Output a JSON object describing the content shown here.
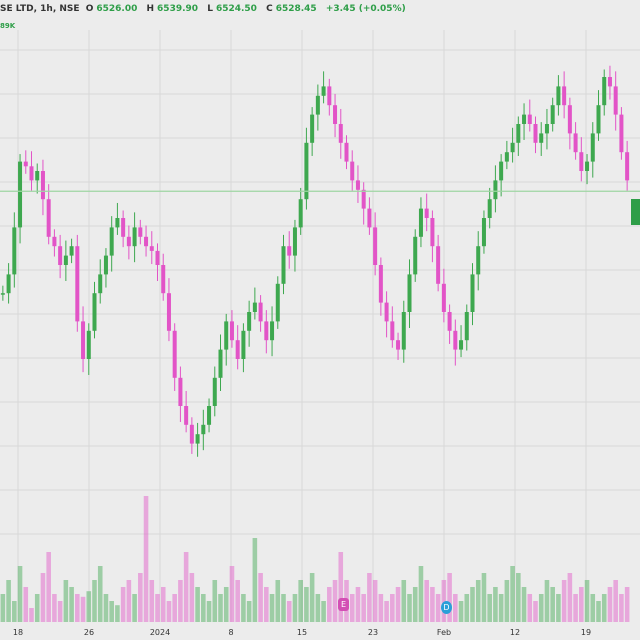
{
  "header": {
    "symbol": "SE LTD, 1h, NSE",
    "open_label": "O",
    "open": "6526.00",
    "high_label": "H",
    "high": "6539.90",
    "low_label": "L",
    "low": "6524.50",
    "close_label": "C",
    "close": "6528.45",
    "change": "+3.45 (+0.05%)",
    "vol_tag": "89K"
  },
  "colors": {
    "up": "#3ea84f",
    "down": "#e254c7",
    "background": "#ececec",
    "grid": "#d8d8d8",
    "price_line": "#9fd6a3",
    "event_earnings": "#d34fb4",
    "event_dividend": "#2aa0d8"
  },
  "events": [
    {
      "icon": "earnings-event-icon",
      "glyph": "E",
      "date_label": "23"
    },
    {
      "icon": "dividend-event-icon",
      "glyph": "D",
      "date_label": "Feb"
    }
  ],
  "chart_data": {
    "type": "candlestick",
    "interval": "1h",
    "x_tick_labels": [
      "18",
      "26",
      "2024",
      "8",
      "15",
      "23",
      "Feb",
      "12",
      "19"
    ],
    "price_line": 6528.45,
    "y_range": [
      6200,
      6700
    ],
    "grid": true,
    "ohlc_close_path": [
      6420,
      6440,
      6490,
      6560,
      6555,
      6540,
      6550,
      6520,
      6480,
      6470,
      6450,
      6460,
      6470,
      6390,
      6350,
      6380,
      6420,
      6440,
      6460,
      6490,
      6500,
      6480,
      6470,
      6490,
      6480,
      6470,
      6465,
      6450,
      6420,
      6380,
      6330,
      6300,
      6280,
      6260,
      6270,
      6280,
      6300,
      6330,
      6360,
      6390,
      6370,
      6350,
      6380,
      6400,
      6410,
      6390,
      6370,
      6390,
      6430,
      6470,
      6460,
      6490,
      6520,
      6580,
      6610,
      6630,
      6640,
      6620,
      6600,
      6580,
      6560,
      6540,
      6530,
      6510,
      6490,
      6450,
      6410,
      6390,
      6370,
      6360,
      6400,
      6440,
      6480,
      6510,
      6500,
      6470,
      6430,
      6400,
      6380,
      6360,
      6370,
      6400,
      6440,
      6470,
      6500,
      6520,
      6540,
      6560,
      6570,
      6580,
      6600,
      6610,
      6600,
      6580,
      6590,
      6600,
      6620,
      6640,
      6620,
      6590,
      6570,
      6550,
      6560,
      6590,
      6620,
      6650,
      6640,
      6610,
      6570,
      6540
    ],
    "volume_relative": [
      0.2,
      0.3,
      0.15,
      0.4,
      0.25,
      0.1,
      0.2,
      0.35,
      0.5,
      0.2,
      0.15,
      0.3,
      0.25,
      0.2,
      0.18,
      0.22,
      0.3,
      0.4,
      0.2,
      0.15,
      0.12,
      0.25,
      0.3,
      0.2,
      0.35,
      0.9,
      0.3,
      0.2,
      0.25,
      0.15,
      0.2,
      0.3,
      0.5,
      0.35,
      0.25,
      0.2,
      0.15,
      0.3,
      0.2,
      0.25,
      0.4,
      0.3,
      0.2,
      0.15,
      0.6,
      0.35,
      0.25,
      0.2,
      0.3,
      0.2,
      0.15,
      0.2,
      0.3,
      0.25,
      0.35,
      0.2,
      0.15,
      0.25,
      0.3,
      0.5,
      0.3,
      0.2,
      0.25,
      0.2,
      0.35,
      0.3,
      0.2,
      0.15,
      0.2,
      0.25,
      0.3,
      0.2,
      0.25,
      0.4,
      0.3,
      0.25,
      0.2,
      0.3,
      0.35,
      0.2,
      0.15,
      0.2,
      0.25,
      0.3,
      0.35,
      0.2,
      0.25,
      0.2,
      0.3,
      0.4,
      0.35,
      0.25,
      0.2,
      0.15,
      0.2,
      0.3,
      0.25,
      0.2,
      0.3,
      0.35,
      0.2,
      0.25,
      0.3,
      0.2,
      0.15,
      0.2,
      0.25,
      0.3,
      0.2,
      0.25
    ]
  }
}
